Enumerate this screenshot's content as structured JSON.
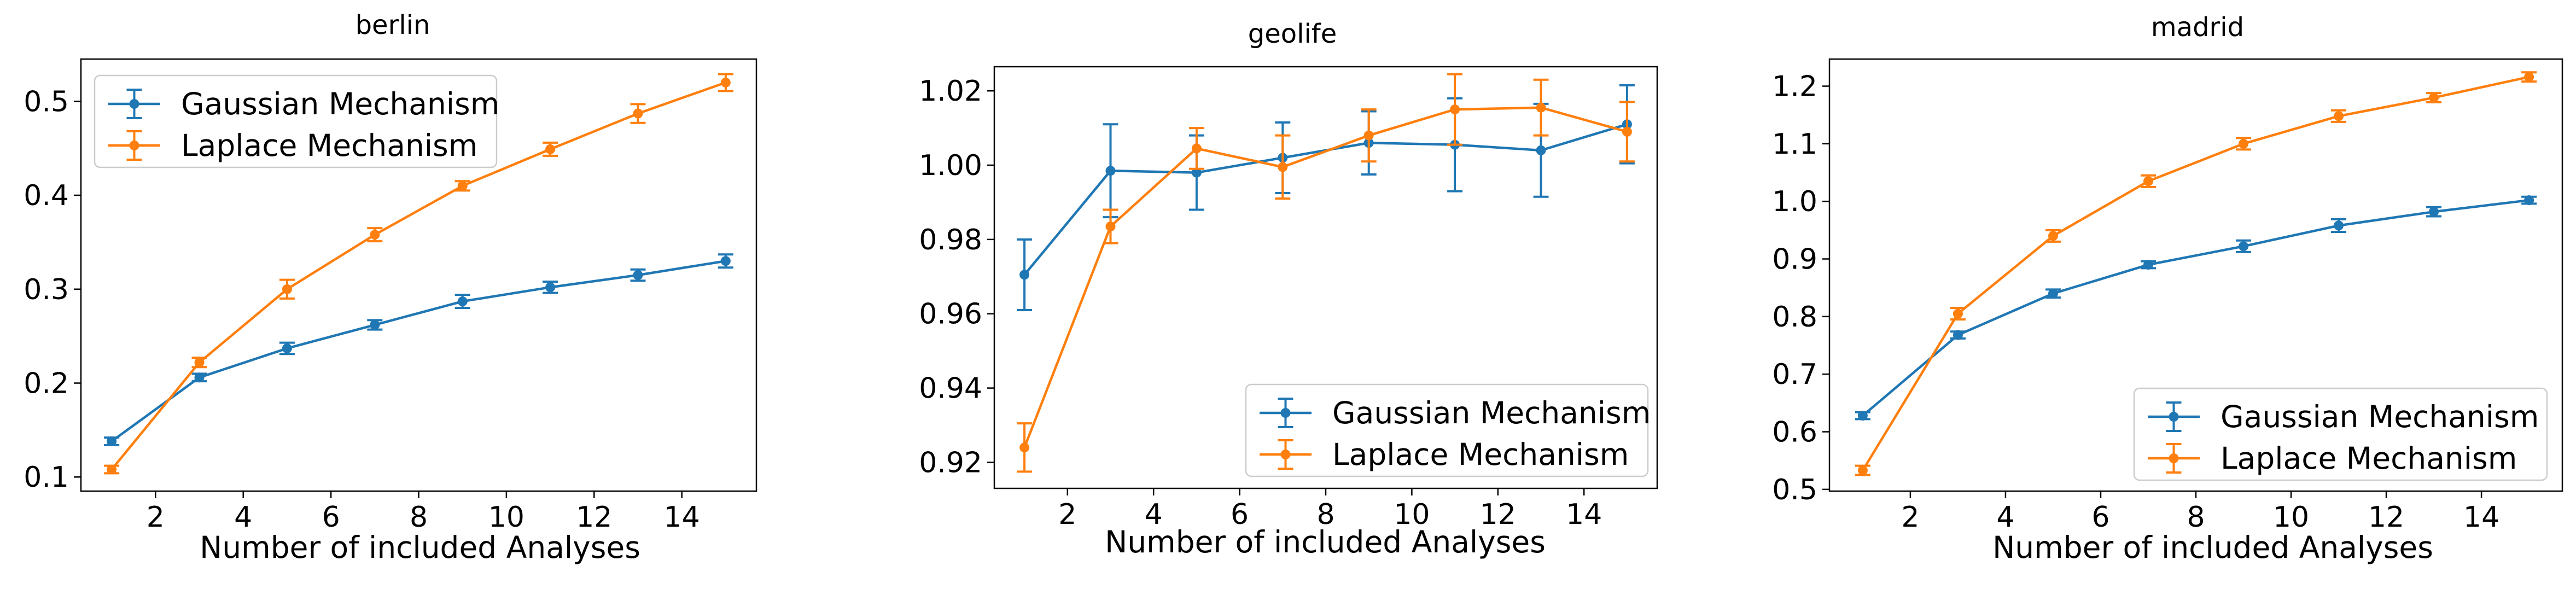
{
  "chart_data": [
    {
      "type": "line",
      "title": "berlin",
      "xlabel": "Number of included Analyses",
      "ylabel": "",
      "x": [
        1,
        3,
        5,
        7,
        9,
        11,
        13,
        15
      ],
      "xlim": [
        0.3,
        15.7
      ],
      "ylim": [
        0.085,
        0.545
      ],
      "xticks": [
        2,
        4,
        6,
        8,
        10,
        12,
        14
      ],
      "yticks": [
        0.1,
        0.2,
        0.3,
        0.4,
        0.5
      ],
      "ytick_labels": [
        "0.1",
        "0.2",
        "0.3",
        "0.4",
        "0.5"
      ],
      "legend_position": "upper-left",
      "series": [
        {
          "name": "Gaussian Mechanism",
          "color": "#1f77b4",
          "values": [
            0.138,
            0.206,
            0.237,
            0.262,
            0.287,
            0.302,
            0.315,
            0.33
          ],
          "errors": [
            0.004,
            0.004,
            0.006,
            0.005,
            0.007,
            0.006,
            0.006,
            0.007
          ]
        },
        {
          "name": "Laplace Mechanism",
          "color": "#ff7f0e",
          "values": [
            0.108,
            0.222,
            0.3,
            0.358,
            0.41,
            0.449,
            0.487,
            0.52
          ],
          "errors": [
            0.004,
            0.005,
            0.01,
            0.007,
            0.005,
            0.007,
            0.01,
            0.009
          ]
        }
      ]
    },
    {
      "type": "line",
      "title": "geolife",
      "xlabel": "Number of included Analyses",
      "ylabel": "",
      "x": [
        1,
        3,
        5,
        7,
        9,
        11,
        13,
        15
      ],
      "xlim": [
        0.3,
        15.7
      ],
      "ylim": [
        0.913,
        1.0265
      ],
      "xticks": [
        2,
        4,
        6,
        8,
        10,
        12,
        14
      ],
      "yticks": [
        0.92,
        0.94,
        0.96,
        0.98,
        1.0,
        1.02
      ],
      "ytick_labels": [
        "0.92",
        "0.94",
        "0.96",
        "0.98",
        "1.00",
        "1.02"
      ],
      "legend_position": "lower-right",
      "series": [
        {
          "name": "Gaussian Mechanism",
          "color": "#1f77b4",
          "values": [
            0.9705,
            0.9985,
            0.998,
            1.002,
            1.006,
            1.0055,
            1.004,
            1.011
          ],
          "errors": [
            0.0095,
            0.0125,
            0.01,
            0.0095,
            0.0085,
            0.0125,
            0.0125,
            0.0105
          ]
        },
        {
          "name": "Laplace Mechanism",
          "color": "#ff7f0e",
          "values": [
            0.924,
            0.9835,
            1.0045,
            0.9995,
            1.008,
            1.015,
            1.0155,
            1.009
          ],
          "errors": [
            0.0065,
            0.0045,
            0.0055,
            0.0085,
            0.007,
            0.0095,
            0.0075,
            0.008
          ]
        }
      ]
    },
    {
      "type": "line",
      "title": "madrid",
      "xlabel": "Number of included Analyses",
      "ylabel": "",
      "x": [
        1,
        3,
        5,
        7,
        9,
        11,
        13,
        15
      ],
      "xlim": [
        0.3,
        15.7
      ],
      "ylim": [
        0.497,
        1.247
      ],
      "xticks": [
        2,
        4,
        6,
        8,
        10,
        12,
        14
      ],
      "yticks": [
        0.5,
        0.6,
        0.7,
        0.8,
        0.9,
        1.0,
        1.1,
        1.2
      ],
      "ytick_labels": [
        "0.5",
        "0.6",
        "0.7",
        "0.8",
        "0.9",
        "1.0",
        "1.1",
        "1.2"
      ],
      "legend_position": "lower-right",
      "series": [
        {
          "name": "Gaussian Mechanism",
          "color": "#1f77b4",
          "values": [
            0.628,
            0.768,
            0.84,
            0.89,
            0.922,
            0.958,
            0.982,
            1.002
          ],
          "errors": [
            0.006,
            0.006,
            0.007,
            0.006,
            0.01,
            0.011,
            0.008,
            0.006
          ]
        },
        {
          "name": "Laplace Mechanism",
          "color": "#ff7f0e",
          "values": [
            0.533,
            0.805,
            0.94,
            1.035,
            1.1,
            1.148,
            1.18,
            1.216
          ],
          "errors": [
            0.008,
            0.01,
            0.01,
            0.01,
            0.01,
            0.01,
            0.008,
            0.008
          ]
        }
      ]
    }
  ]
}
